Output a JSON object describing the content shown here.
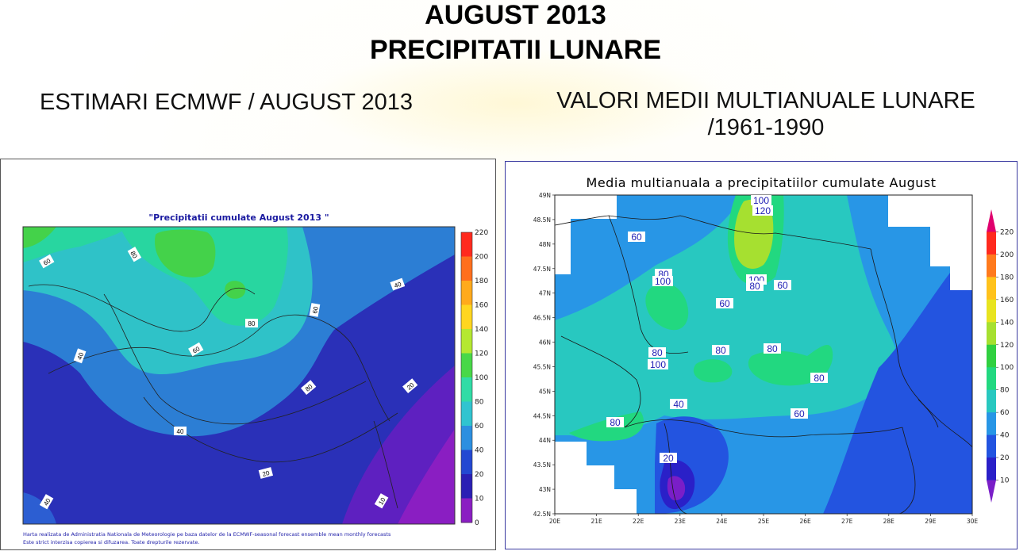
{
  "header": {
    "title_line1": "AUGUST 2013",
    "title_line2": "PRECIPITATII LUNARE"
  },
  "left_panel": {
    "heading": "ESTIMARI ECMWF / AUGUST 2013",
    "map_title": "\"Precipitatii cumulate August 2013 \"",
    "colorbar_ticks": [
      "220",
      "200",
      "180",
      "160",
      "140",
      "120",
      "100",
      "80",
      "60",
      "40",
      "20",
      "10",
      "0"
    ],
    "colorbar_colors": [
      "#ff2a1e",
      "#ff6f1d",
      "#ffaa1c",
      "#ffd620",
      "#b5e830",
      "#48d848",
      "#30dca6",
      "#30c4d0",
      "#2c8fe0",
      "#2348d2",
      "#2a1fb4",
      "#8a1ec2"
    ],
    "contour_labels": [
      "60",
      "80",
      "40",
      "60",
      "80",
      "60",
      "40",
      "80",
      "20",
      "40",
      "20",
      "40",
      "10"
    ],
    "footer_line1": "Harta realizata de Administratia Nationala de Meteorologie pe baza datelor de la ECMWF-seasonal forecast ensemble mean monthly forecasts",
    "footer_line2": "Este strict interzisa copierea si difuzarea. Toate drepturile rezervate."
  },
  "right_panel": {
    "heading_line1": "VALORI MEDII MULTIANUALE LUNARE",
    "heading_line2": "/1961-1990",
    "map_title": "Media multianuala a precipitatiilor cumulate August",
    "lat_ticks": [
      "49N",
      "48.5N",
      "48N",
      "47.5N",
      "47N",
      "46.5N",
      "46N",
      "45.5N",
      "45N",
      "44.5N",
      "44N",
      "43.5N",
      "43N",
      "42.5N"
    ],
    "lon_ticks": [
      "20E",
      "21E",
      "22E",
      "23E",
      "24E",
      "25E",
      "26E",
      "27E",
      "28E",
      "29E",
      "30E"
    ],
    "colorbar_ticks": [
      "220",
      "200",
      "180",
      "160",
      "140",
      "120",
      "100",
      "80",
      "60",
      "40",
      "20",
      "10"
    ],
    "colorbar_colors": [
      "#e0006e",
      "#ff2a1e",
      "#ff7a1d",
      "#ffc21c",
      "#e8e420",
      "#a6e030",
      "#30d040",
      "#22d880",
      "#28c8c0",
      "#2896e6",
      "#2354e0",
      "#2a20c8",
      "#7a1ec8"
    ],
    "contour_labels": [
      "100",
      "120",
      "60",
      "80",
      "100",
      "100",
      "80",
      "60",
      "60",
      "80",
      "80",
      "80",
      "100",
      "80",
      "60",
      "40",
      "80",
      "20"
    ]
  }
}
